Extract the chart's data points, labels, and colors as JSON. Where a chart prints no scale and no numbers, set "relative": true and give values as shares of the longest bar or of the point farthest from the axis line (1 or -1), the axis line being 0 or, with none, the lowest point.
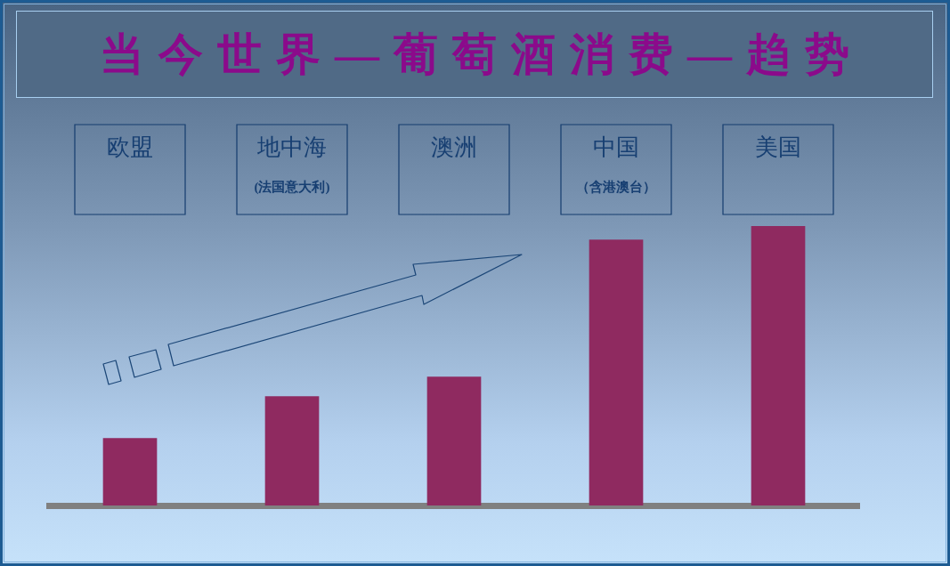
{
  "chart_data": {
    "type": "bar",
    "title": "当今世界—葡萄酒消费—趋势",
    "categories": [
      "欧盟",
      "地中海(法国意大利)",
      "澳洲",
      "中国（含港澳台）",
      "美国"
    ],
    "values": [
      0.24,
      0.39,
      0.46,
      0.95,
      1
    ],
    "color": "#8f2a60",
    "relative": true
  }
}
